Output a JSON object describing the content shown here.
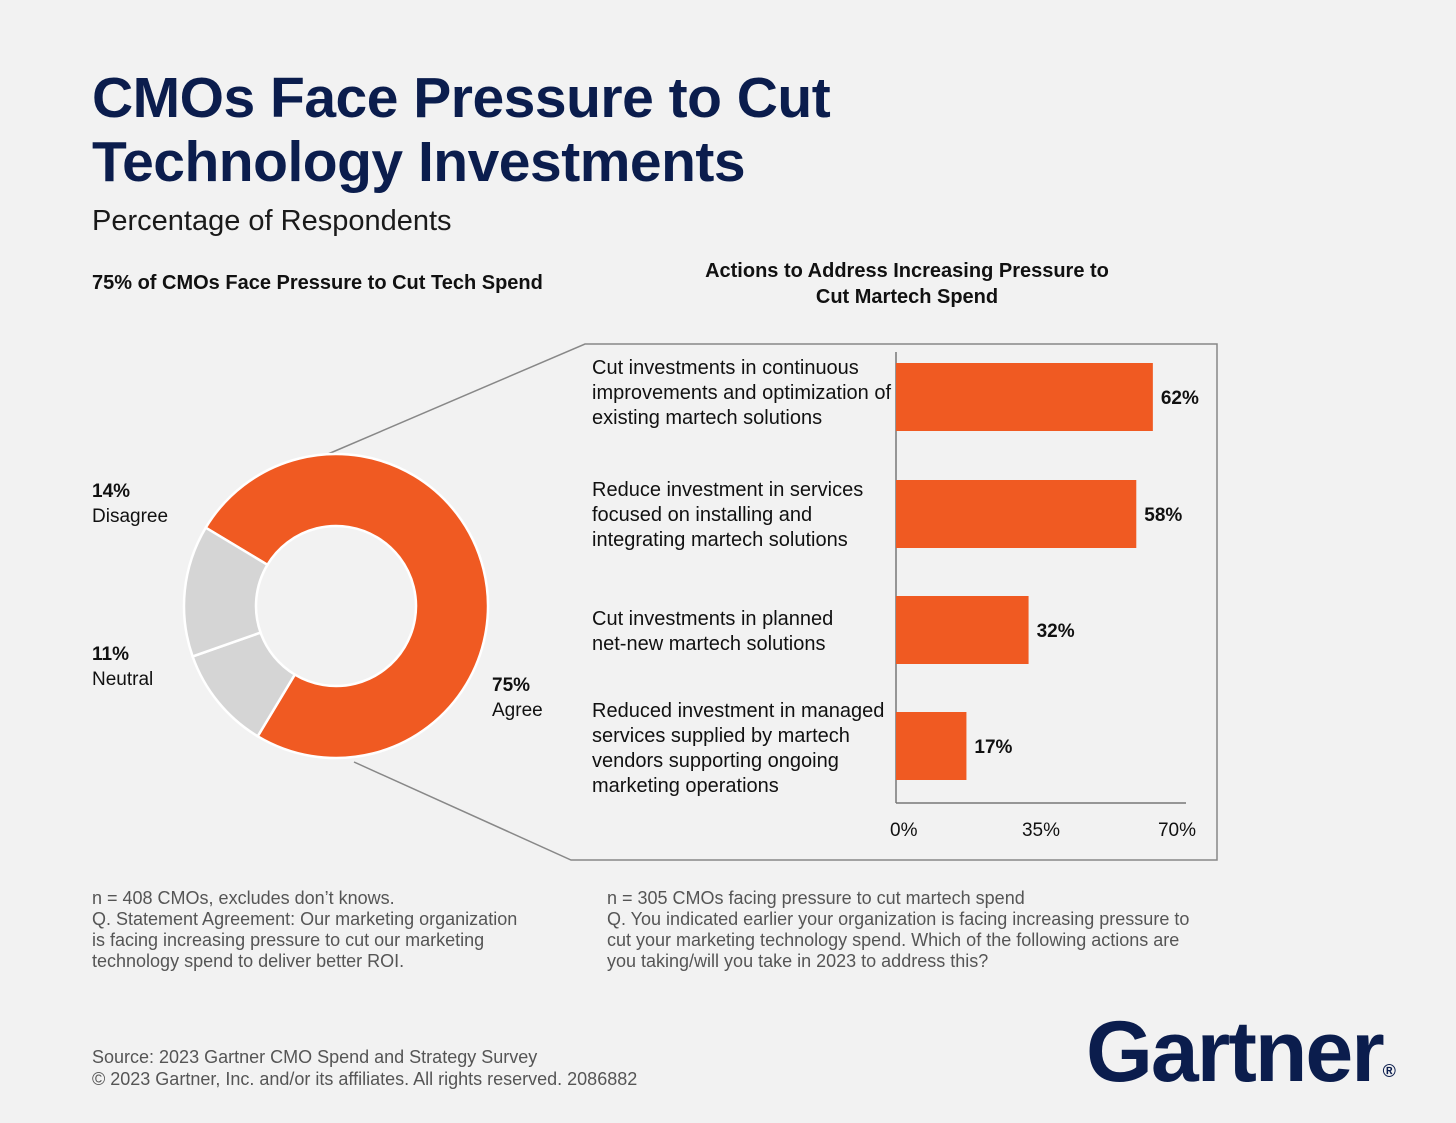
{
  "title": "CMOs Face Pressure to Cut Technology Investments",
  "subtitle": "Percentage of Respondents",
  "colors": {
    "accent": "#f05a22",
    "neutral": "#d5d5d5",
    "navy": "#0b1d4d"
  },
  "chart_data": [
    {
      "type": "pie",
      "title": "75% of CMOs Face Pressure to Cut Tech Spend",
      "categories": [
        "Agree",
        "Neutral",
        "Disagree"
      ],
      "values": [
        75,
        11,
        14
      ],
      "value_labels": [
        "75%",
        "11%",
        "14%"
      ]
    },
    {
      "type": "bar",
      "orientation": "horizontal",
      "title": "Actions to Address Increasing Pressure to Cut Martech Spend",
      "categories": [
        "Cut investments in continuous improvements and optimization of existing martech solutions",
        "Reduce investment in services focused on installing and integrating martech solutions",
        "Cut investments in planned net-new martech solutions",
        "Reduced investment in managed services supplied by martech vendors supporting ongoing marketing operations"
      ],
      "values": [
        62,
        58,
        32,
        17
      ],
      "value_labels": [
        "62%",
        "58%",
        "32%",
        "17%"
      ],
      "xlim": [
        0,
        70
      ],
      "xticks": [
        "0%",
        "35%",
        "70%"
      ],
      "grid": false
    }
  ],
  "notes": {
    "left": [
      "n = 408 CMOs, excludes don’t knows.",
      "Q. Statement Agreement: Our marketing organization",
      "is facing increasing pressure to cut our marketing",
      "technology spend to deliver better ROI."
    ],
    "right": [
      "n = 305 CMOs facing pressure to cut martech spend",
      "Q. You indicated earlier your organization is facing increasing pressure to",
      "cut your marketing technology spend. Which of the following actions are",
      "you taking/will you take in 2023 to address this?"
    ]
  },
  "source": [
    "Source: 2023 Gartner CMO Spend and Strategy Survey",
    "© 2023 Gartner, Inc. and/or its affiliates. All rights reserved. 2086882"
  ],
  "logo": {
    "text": "Gartner",
    "mark": "®"
  }
}
